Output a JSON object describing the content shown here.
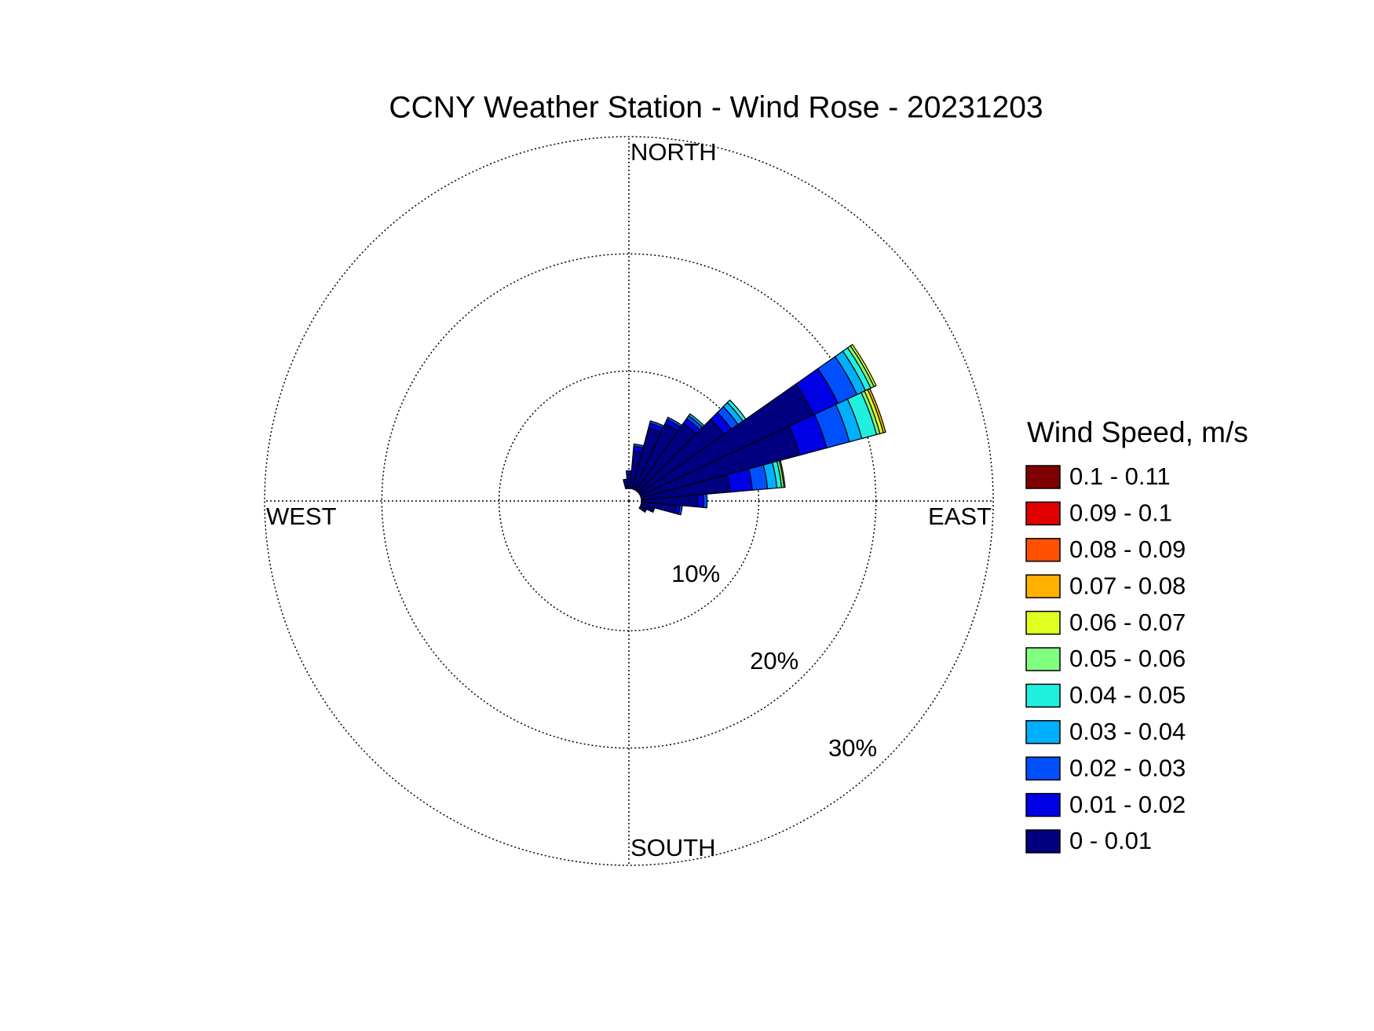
{
  "chart_data": {
    "type": "windrose",
    "title": "CCNY Weather Station - Wind Rose - 20231203",
    "legend_title": "Wind Speed, m/s",
    "directions": [
      350,
      0,
      10,
      20,
      30,
      40,
      50,
      60,
      70,
      80,
      90,
      100,
      110,
      120
    ],
    "sector_width": 10,
    "rlim": [
      0,
      30
    ],
    "rticks": [
      {
        "value": 10,
        "label": "10%"
      },
      {
        "value": 20,
        "label": "20%"
      },
      {
        "value": 30,
        "label": "30%"
      }
    ],
    "thetaticks": [
      {
        "value": 0,
        "label": "NORTH"
      },
      {
        "value": 90,
        "label": "EAST"
      },
      {
        "value": 180,
        "label": "SOUTH"
      },
      {
        "value": 270,
        "label": "WEST"
      }
    ],
    "grid": true,
    "legend": "right",
    "series": [
      {
        "name": "0 - 0.01",
        "color": "#000080",
        "values": [
          0.6,
          1.2,
          3.2,
          5.4,
          6.2,
          7,
          8.8,
          16.3,
          14,
          7.6,
          4.8,
          3.0,
          1.0,
          0.6
        ]
      },
      {
        "name": "0.01 - 0.02",
        "color": "#0000e6",
        "values": [
          0.2,
          0.3,
          0.4,
          0.4,
          0.4,
          0.5,
          0.8,
          2.3,
          2.4,
          1.9,
          0.5,
          0.3,
          0.2,
          0
        ]
      },
      {
        "name": "0.02 - 0.03",
        "color": "#0050ff",
        "values": [
          0,
          0,
          0.2,
          0.2,
          0.2,
          0.3,
          0.7,
          1.8,
          2.0,
          1.3,
          0.3,
          0.2,
          0,
          0
        ]
      },
      {
        "name": "0.03 - 0.04",
        "color": "#00b0ff",
        "values": [
          0,
          0,
          0,
          0,
          0,
          0.2,
          0.5,
          0.8,
          1.1,
          0.8,
          0,
          0,
          0,
          0
        ]
      },
      {
        "name": "0.04 - 0.05",
        "color": "#20f0e0",
        "values": [
          0,
          0,
          0,
          0,
          0,
          0,
          0.3,
          0.5,
          1.3,
          0.4,
          0,
          0,
          0,
          0
        ]
      },
      {
        "name": "0.05 - 0.06",
        "color": "#80ff80",
        "values": [
          0,
          0,
          0,
          0,
          0,
          0,
          0,
          0.3,
          0.3,
          0.2,
          0,
          0,
          0,
          0
        ]
      },
      {
        "name": "0.06 - 0.07",
        "color": "#e0ff20",
        "values": [
          0,
          0,
          0,
          0,
          0,
          0,
          0,
          0.2,
          0.3,
          0.1,
          0,
          0,
          0,
          0
        ]
      },
      {
        "name": "0.07 - 0.08",
        "color": "#ffb000",
        "values": [
          0,
          0,
          0,
          0,
          0,
          0,
          0,
          0,
          0.2,
          0,
          0,
          0,
          0,
          0
        ]
      },
      {
        "name": "0.08 - 0.09",
        "color": "#ff5000",
        "values": [
          0,
          0,
          0,
          0,
          0,
          0,
          0,
          0,
          0,
          0,
          0,
          0,
          0,
          0
        ]
      },
      {
        "name": "0.09 - 0.1",
        "color": "#e00000",
        "values": [
          0,
          0,
          0,
          0,
          0,
          0,
          0,
          0,
          0,
          0,
          0,
          0,
          0,
          0
        ]
      },
      {
        "name": "0.1 - 0.11",
        "color": "#800000",
        "values": [
          0,
          0,
          0,
          0,
          0,
          0,
          0,
          0,
          0,
          0,
          0,
          0,
          0,
          0
        ]
      }
    ]
  }
}
